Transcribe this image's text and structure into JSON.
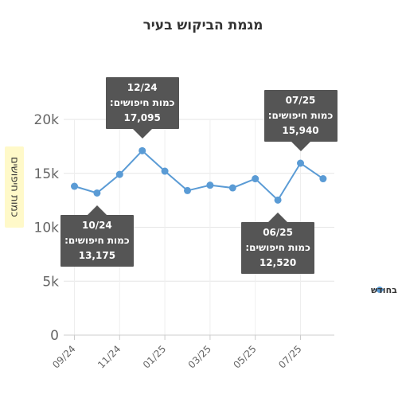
{
  "chart_data": {
    "type": "line",
    "title": "מגמת הביקוש בעיר",
    "ylabel": "כמות חיפושים",
    "xlabel": "",
    "ylim": [
      0,
      20000
    ],
    "yticks": [
      0,
      5000,
      10000,
      15000,
      20000
    ],
    "ytick_labels": [
      "0",
      "5k",
      "10k",
      "15k",
      "20k"
    ],
    "x": [
      "09/24",
      "10/24",
      "11/24",
      "12/24",
      "01/25",
      "02/25",
      "03/25",
      "04/25",
      "05/25",
      "06/25",
      "07/25",
      "08/25"
    ],
    "xtick_labels": [
      "09/24",
      "11/24",
      "01/25",
      "03/25",
      "05/25",
      "07/25"
    ],
    "grid": true,
    "legend_position": "right",
    "series": [
      {
        "name": "חיפושים בחודש",
        "color": "#5a9bd5",
        "values": [
          13800,
          13175,
          14900,
          17095,
          15200,
          13400,
          13900,
          13650,
          14500,
          12520,
          15940,
          14500
        ]
      }
    ],
    "annotations": [
      {
        "x": "12/24",
        "line1": "12/24",
        "line2": "כמות חיפושים:",
        "line3": "17,095",
        "placement": "above"
      },
      {
        "x": "10/24",
        "line1": "10/24",
        "line2": "כמות חיפושים:",
        "line3": "13,175",
        "placement": "below"
      },
      {
        "x": "07/25",
        "line1": "07/25",
        "line2": "כמות חיפושים:",
        "line3": "15,940",
        "placement": "above"
      },
      {
        "x": "06/25",
        "line1": "06/25",
        "line2": "כמות חיפושים:",
        "line3": "12,520",
        "placement": "below"
      }
    ]
  }
}
